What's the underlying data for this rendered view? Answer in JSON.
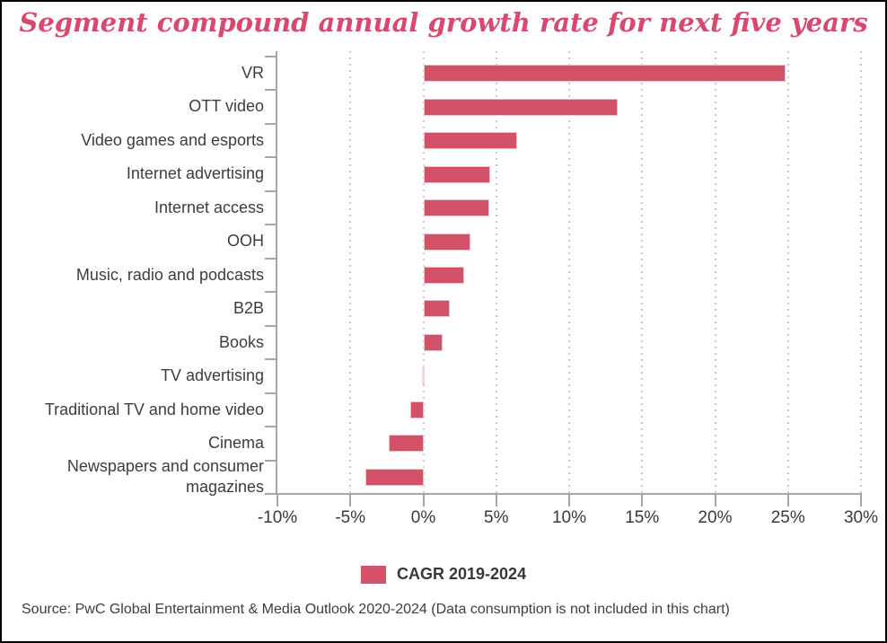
{
  "title": "Segment compound annual growth rate for next five years",
  "legend": {
    "label": "CAGR 2019-2024"
  },
  "source": "Source: PwC Global Entertainment & Media Outlook 2020-2024 (Data consumption is not included in this chart)",
  "colors": {
    "title": "#d9486d",
    "bar": "#d45268",
    "bar_border": "#eec3cd",
    "zero_bar": "#f3d6de",
    "axis": "#a6a6a6",
    "grid_dot": "#c9c9c9",
    "category_text": "#3d3d3d",
    "tick_text": "#393939"
  },
  "chart_data": {
    "type": "bar",
    "orientation": "horizontal",
    "title": "Segment compound annual growth rate for next five years",
    "series_name": "CAGR 2019-2024",
    "categories": [
      "VR",
      "OTT video",
      "Video games and esports",
      "Internet advertising",
      "Internet access",
      "OOH",
      "Music, radio and podcasts",
      "B2B",
      "Books",
      "TV advertising",
      "Traditional TV and home video",
      "Cinema",
      "Newspapers and consumer magazines"
    ],
    "values": [
      24.8,
      13.3,
      6.4,
      4.6,
      4.5,
      3.2,
      2.8,
      1.8,
      1.3,
      0.0,
      -0.9,
      -2.4,
      -4.0
    ],
    "value_unit": "%",
    "xlim": [
      -10,
      30
    ],
    "x_ticks": [
      -10,
      -5,
      0,
      5,
      10,
      15,
      20,
      25,
      30
    ],
    "x_tick_labels": [
      "-10%",
      "-5%",
      "0%",
      "5%",
      "10%",
      "15%",
      "20%",
      "25%",
      "30%"
    ],
    "grid": "vertical-dotted",
    "legend_position": "bottom"
  }
}
